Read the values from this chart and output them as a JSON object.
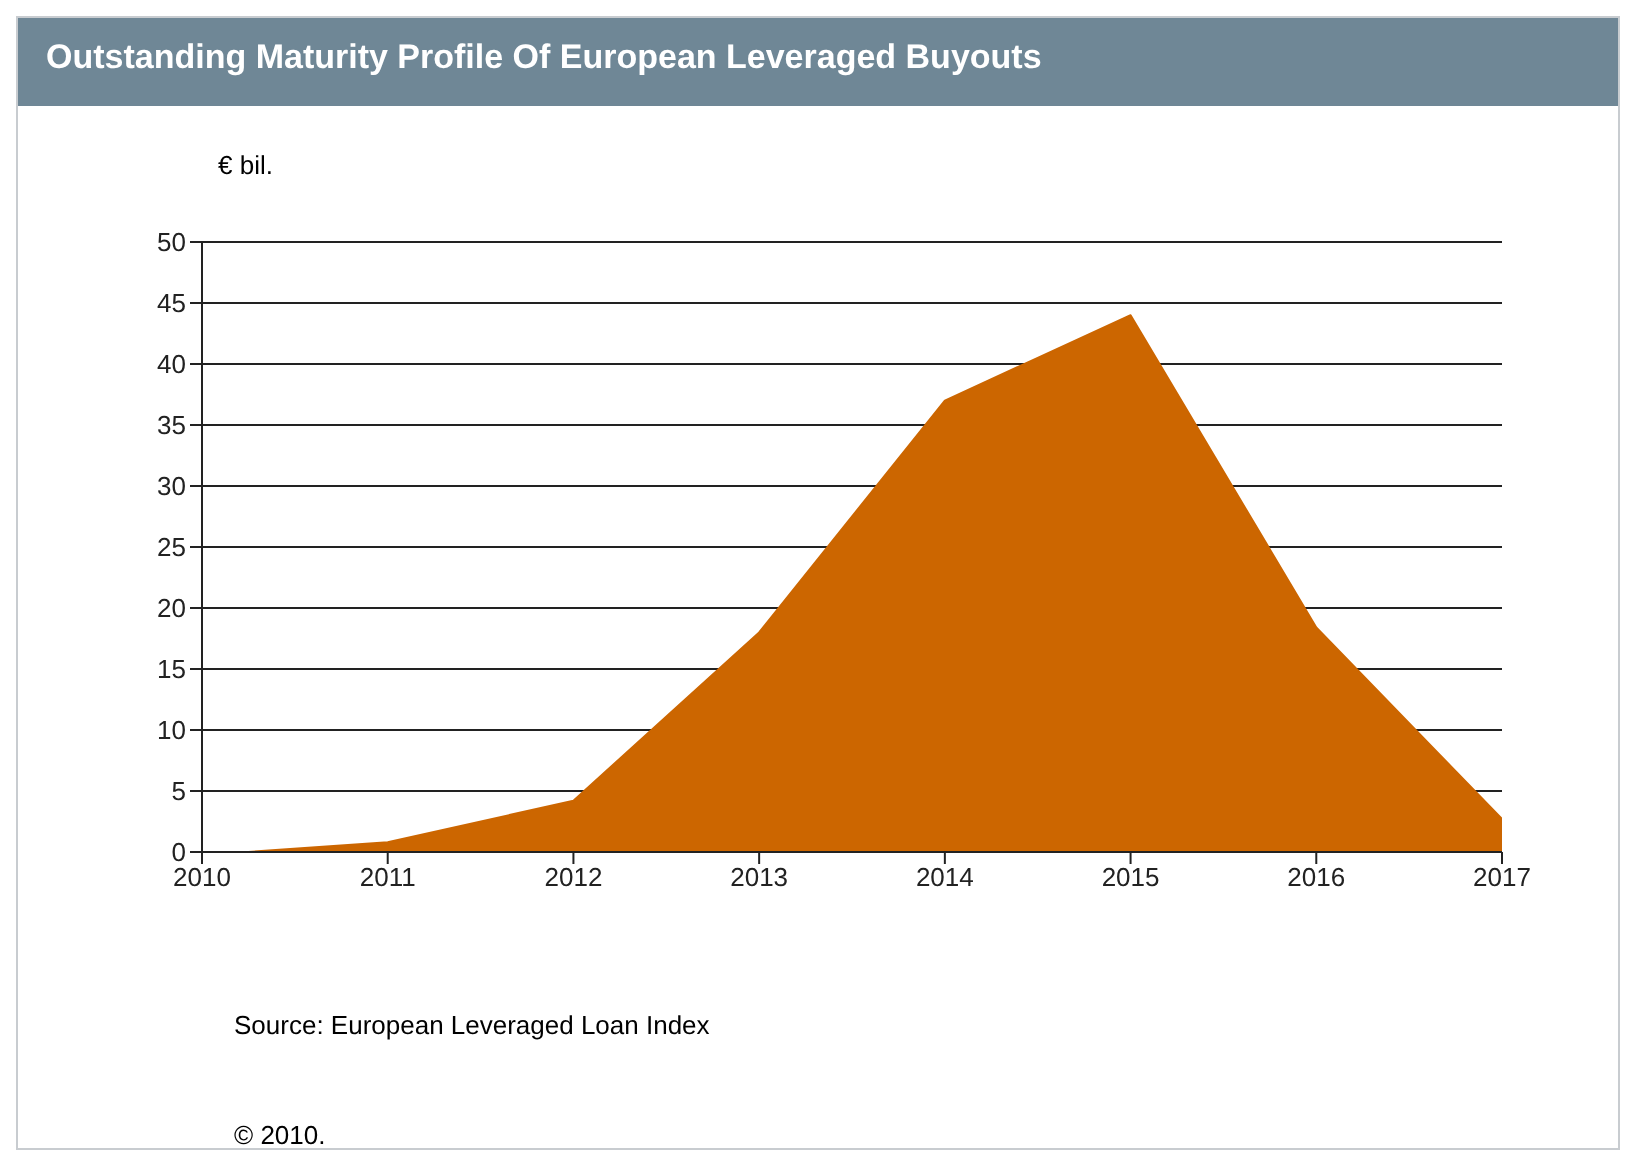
{
  "chart_data": {
    "type": "area",
    "title": "Outstanding Maturity Profile Of European Leveraged Buyouts",
    "ylabel": "€ bil.",
    "x": [
      2010.25,
      2011,
      2012,
      2013,
      2014,
      2014.5,
      2015,
      2016,
      2017
    ],
    "series": [
      {
        "color": "#cc6600",
        "values": [
          0,
          0.8,
          4.2,
          18,
          37,
          40.5,
          44,
          18.4,
          2.7
        ]
      }
    ],
    "xlim": [
      2010,
      2017
    ],
    "xticks": [
      2010,
      2011,
      2012,
      2013,
      2014,
      2015,
      2016,
      2017
    ],
    "ylim": [
      0,
      50
    ],
    "yticks": [
      0,
      5,
      10,
      15,
      20,
      25,
      30,
      35,
      40,
      45,
      50
    ],
    "grid": "y",
    "annotations": [
      "Source: European Leveraged Loan Index",
      "© 2010."
    ]
  }
}
